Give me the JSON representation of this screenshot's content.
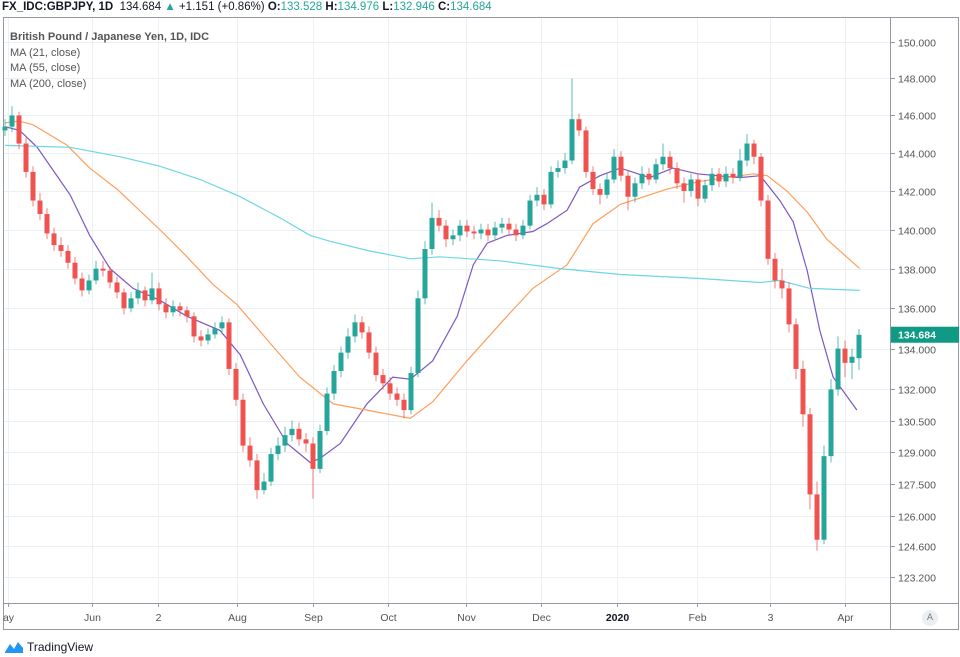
{
  "header": {
    "symbol": "FX_IDC:GBPJPY, 1D",
    "last": "134.684",
    "change": "+1.151 (+0.86%)",
    "o_label": "O:",
    "o": "133.528",
    "h_label": "H:",
    "h": "134.976",
    "l_label": "L:",
    "l": "132.946",
    "c_label": "C:",
    "c": "134.684",
    "direction_icon": "triangle-up"
  },
  "legend": {
    "title": "British Pound / Japanese Yen, 1D, IDC",
    "ma1": "MA (21, close)",
    "ma2": "MA (55, close)",
    "ma3": "MA (200, close)"
  },
  "footer": {
    "logo_text": "TradingView"
  },
  "auto_button": "A",
  "colors": {
    "up": "#26a69a",
    "down": "#ef5350",
    "ma21": "#7e57c2",
    "ma55": "#ff9f5a",
    "ma200": "#6dd6e2",
    "grid": "#eaf0f4",
    "price_label": "#0f9a85"
  },
  "chart_data": {
    "type": "candlestick",
    "symbol": "GBPJPY",
    "interval": "1D",
    "y_scale": "log",
    "ylim": [
      121.5,
      151.5
    ],
    "grid": true,
    "last_price_label": "134.684",
    "y_ticks": [
      "150.000",
      "148.000",
      "146.000",
      "144.000",
      "142.000",
      "140.000",
      "138.000",
      "136.000",
      "134.000",
      "132.000",
      "130.500",
      "129.000",
      "127.500",
      "126.000",
      "124.600",
      "123.200"
    ],
    "x_ticks": [
      {
        "label": "ay",
        "i": 0.4
      },
      {
        "label": "Jun",
        "i": 12.4
      },
      {
        "label": "2",
        "i": 21.9
      },
      {
        "label": "Aug",
        "i": 33.1
      },
      {
        "label": "Sep",
        "i": 44
      },
      {
        "label": "Oct",
        "i": 54.7
      },
      {
        "label": "Nov",
        "i": 65.9
      },
      {
        "label": "Dec",
        "i": 76.6
      },
      {
        "label": "2020",
        "i": 87.4,
        "bold": true
      },
      {
        "label": "Feb",
        "i": 98.9
      },
      {
        "label": "3",
        "i": 109.3
      },
      {
        "label": "Apr",
        "i": 120
      }
    ],
    "ohlc": [
      [
        145.2,
        145.8,
        144.9,
        145.4
      ],
      [
        145.4,
        146.5,
        145.1,
        146.0
      ],
      [
        146.0,
        146.2,
        144.2,
        144.5
      ],
      [
        144.5,
        144.8,
        142.7,
        143.0
      ],
      [
        143.0,
        143.3,
        141.2,
        141.5
      ],
      [
        141.5,
        141.9,
        140.5,
        140.8
      ],
      [
        140.8,
        141.1,
        139.5,
        139.8
      ],
      [
        139.8,
        140.1,
        138.9,
        139.2
      ],
      [
        139.2,
        139.6,
        138.6,
        138.9
      ],
      [
        138.9,
        139.2,
        138.0,
        138.3
      ],
      [
        138.3,
        138.6,
        137.2,
        137.5
      ],
      [
        137.5,
        137.8,
        136.6,
        136.9
      ],
      [
        136.9,
        137.7,
        136.7,
        137.4
      ],
      [
        137.4,
        138.4,
        137.2,
        138.0
      ],
      [
        138.0,
        138.4,
        137.6,
        137.9
      ],
      [
        137.9,
        138.1,
        137.0,
        137.3
      ],
      [
        137.3,
        137.6,
        136.5,
        136.8
      ],
      [
        136.8,
        137.0,
        135.7,
        136.0
      ],
      [
        136.0,
        136.8,
        135.8,
        136.5
      ],
      [
        136.5,
        137.3,
        136.2,
        136.9
      ],
      [
        136.9,
        137.1,
        136.1,
        136.4
      ],
      [
        136.4,
        137.8,
        136.2,
        137.0
      ],
      [
        137.0,
        137.3,
        135.9,
        136.2
      ],
      [
        136.2,
        136.5,
        135.5,
        135.8
      ],
      [
        135.8,
        136.4,
        135.6,
        136.1
      ],
      [
        136.1,
        136.3,
        135.6,
        135.9
      ],
      [
        135.9,
        136.1,
        135.3,
        135.6
      ],
      [
        135.6,
        135.8,
        134.3,
        134.6
      ],
      [
        134.6,
        134.9,
        134.1,
        134.4
      ],
      [
        134.4,
        135.0,
        134.2,
        134.7
      ],
      [
        134.7,
        135.3,
        134.5,
        135.0
      ],
      [
        135.0,
        135.6,
        134.7,
        135.3
      ],
      [
        135.3,
        135.5,
        132.7,
        133.0
      ],
      [
        133.0,
        133.3,
        131.2,
        131.5
      ],
      [
        131.5,
        131.8,
        129.0,
        129.3
      ],
      [
        129.3,
        129.7,
        128.3,
        128.6
      ],
      [
        128.6,
        128.9,
        126.8,
        127.2
      ],
      [
        127.2,
        128.0,
        127.0,
        127.6
      ],
      [
        127.6,
        129.2,
        127.4,
        128.9
      ],
      [
        128.9,
        129.7,
        128.6,
        129.3
      ],
      [
        129.3,
        130.2,
        129.0,
        129.8
      ],
      [
        129.8,
        130.5,
        129.5,
        130.1
      ],
      [
        130.1,
        130.4,
        129.3,
        129.6
      ],
      [
        129.6,
        129.9,
        129.0,
        129.4
      ],
      [
        129.4,
        129.7,
        126.8,
        128.2
      ],
      [
        128.2,
        130.3,
        128.0,
        130.0
      ],
      [
        130.0,
        132.1,
        129.8,
        131.8
      ],
      [
        131.8,
        133.2,
        131.5,
        132.9
      ],
      [
        132.9,
        134.1,
        132.6,
        133.8
      ],
      [
        133.8,
        135.0,
        133.5,
        134.6
      ],
      [
        134.6,
        135.7,
        134.3,
        135.3
      ],
      [
        135.3,
        135.6,
        134.5,
        134.8
      ],
      [
        134.8,
        135.1,
        133.5,
        133.8
      ],
      [
        133.8,
        134.1,
        132.4,
        132.7
      ],
      [
        132.7,
        133.0,
        132.0,
        132.3
      ],
      [
        132.3,
        132.6,
        131.5,
        131.8
      ],
      [
        131.8,
        132.1,
        131.2,
        131.5
      ],
      [
        131.5,
        131.8,
        130.6,
        131.0
      ],
      [
        131.0,
        133.1,
        130.8,
        132.8
      ],
      [
        132.8,
        136.9,
        132.6,
        136.5
      ],
      [
        136.5,
        139.4,
        136.2,
        139.0
      ],
      [
        139.0,
        141.4,
        138.7,
        140.6
      ],
      [
        140.6,
        141.0,
        139.9,
        140.2
      ],
      [
        140.2,
        140.5,
        139.1,
        139.5
      ],
      [
        139.5,
        140.0,
        139.2,
        139.7
      ],
      [
        139.7,
        140.5,
        139.4,
        140.2
      ],
      [
        140.2,
        140.5,
        139.6,
        139.9
      ],
      [
        139.9,
        140.2,
        139.5,
        139.8
      ],
      [
        139.8,
        140.3,
        139.5,
        140.0
      ],
      [
        140.0,
        140.3,
        139.4,
        139.7
      ],
      [
        139.7,
        140.4,
        139.5,
        140.1
      ],
      [
        140.1,
        140.6,
        139.8,
        140.3
      ],
      [
        140.3,
        140.6,
        139.7,
        140.0
      ],
      [
        140.0,
        140.3,
        139.4,
        139.7
      ],
      [
        139.7,
        140.5,
        139.5,
        140.2
      ],
      [
        140.2,
        141.8,
        140.0,
        141.5
      ],
      [
        141.5,
        142.2,
        141.2,
        141.8
      ],
      [
        141.8,
        142.1,
        141.0,
        141.3
      ],
      [
        141.3,
        143.3,
        141.1,
        143.0
      ],
      [
        143.0,
        143.6,
        142.7,
        143.2
      ],
      [
        143.2,
        144.0,
        142.9,
        143.6
      ],
      [
        143.6,
        148.0,
        143.4,
        145.8
      ],
      [
        145.8,
        146.1,
        144.9,
        145.2
      ],
      [
        145.2,
        145.4,
        142.7,
        143.0
      ],
      [
        143.0,
        143.3,
        141.8,
        142.1
      ],
      [
        142.1,
        142.4,
        141.3,
        141.8
      ],
      [
        141.8,
        142.9,
        141.6,
        142.6
      ],
      [
        142.6,
        144.2,
        142.4,
        143.8
      ],
      [
        143.8,
        144.1,
        142.5,
        142.8
      ],
      [
        142.8,
        143.1,
        141.0,
        141.7
      ],
      [
        141.7,
        142.7,
        141.4,
        142.4
      ],
      [
        142.4,
        143.3,
        142.1,
        142.9
      ],
      [
        142.9,
        143.2,
        142.3,
        142.6
      ],
      [
        142.6,
        143.7,
        142.4,
        143.4
      ],
      [
        143.4,
        144.5,
        143.1,
        143.8
      ],
      [
        143.8,
        144.1,
        142.9,
        143.2
      ],
      [
        143.2,
        143.5,
        142.1,
        142.4
      ],
      [
        142.4,
        142.7,
        141.4,
        142.0
      ],
      [
        142.0,
        142.9,
        141.7,
        142.6
      ],
      [
        142.6,
        142.9,
        141.2,
        141.6
      ],
      [
        141.6,
        142.6,
        141.4,
        142.3
      ],
      [
        142.3,
        143.2,
        142.0,
        142.9
      ],
      [
        142.9,
        143.2,
        142.2,
        142.5
      ],
      [
        142.5,
        143.3,
        142.2,
        142.9
      ],
      [
        142.9,
        143.2,
        142.4,
        142.7
      ],
      [
        142.7,
        144.2,
        142.5,
        143.6
      ],
      [
        143.6,
        145.0,
        143.3,
        144.5
      ],
      [
        144.5,
        144.7,
        143.4,
        143.8
      ],
      [
        143.8,
        144.0,
        141.2,
        141.5
      ],
      [
        141.5,
        141.8,
        138.2,
        138.5
      ],
      [
        138.5,
        138.8,
        137.0,
        137.4
      ],
      [
        137.4,
        138.0,
        136.5,
        137.0
      ],
      [
        137.0,
        137.3,
        134.8,
        135.2
      ],
      [
        135.2,
        135.5,
        132.5,
        133.0
      ],
      [
        133.0,
        133.4,
        130.2,
        130.8
      ],
      [
        130.8,
        131.1,
        126.3,
        127.0
      ],
      [
        127.0,
        127.6,
        124.4,
        124.9
      ],
      [
        124.9,
        129.3,
        124.7,
        128.8
      ],
      [
        128.8,
        132.5,
        128.5,
        132.0
      ],
      [
        132.0,
        134.6,
        131.7,
        134.0
      ],
      [
        134.0,
        134.4,
        132.6,
        133.3
      ],
      [
        133.3,
        134.0,
        132.5,
        133.6
      ],
      [
        133.528,
        134.976,
        132.946,
        134.684
      ]
    ],
    "series": [
      {
        "name": "MA (21, close)",
        "color": "#7e57c2",
        "points": [
          [
            0,
            145.4
          ],
          [
            2.1,
            145.2
          ],
          [
            4.6,
            144.3
          ],
          [
            9.3,
            141.8
          ],
          [
            12.1,
            139.7
          ],
          [
            15,
            138.0
          ],
          [
            18.3,
            137.0
          ],
          [
            22.1,
            136.4
          ],
          [
            26,
            135.6
          ],
          [
            30.7,
            134.9
          ],
          [
            33.6,
            133.7
          ],
          [
            36.9,
            131.3
          ],
          [
            40.3,
            129.4
          ],
          [
            43.6,
            128.5
          ],
          [
            45,
            128.7
          ],
          [
            47.9,
            129.4
          ],
          [
            51.7,
            131.3
          ],
          [
            55.4,
            132.6
          ],
          [
            57.9,
            132.5
          ],
          [
            61.1,
            133.4
          ],
          [
            64.6,
            135.6
          ],
          [
            66.9,
            138.2
          ],
          [
            68.9,
            139.3
          ],
          [
            71.7,
            139.7
          ],
          [
            75.4,
            139.9
          ],
          [
            77.4,
            140.3
          ],
          [
            80.3,
            141.0
          ],
          [
            82.1,
            142.2
          ],
          [
            85,
            142.8
          ],
          [
            87.9,
            143.2
          ],
          [
            92.1,
            142.7
          ],
          [
            95.4,
            143.2
          ],
          [
            98.9,
            142.9
          ],
          [
            101.7,
            142.8
          ],
          [
            105,
            142.7
          ],
          [
            107.9,
            142.8
          ],
          [
            110.7,
            141.5
          ],
          [
            112.6,
            140.4
          ],
          [
            114.6,
            137.9
          ],
          [
            116.4,
            134.9
          ],
          [
            118.3,
            132.6
          ],
          [
            121.7,
            131.0
          ]
        ]
      },
      {
        "name": "MA (55, close)",
        "color": "#ff9f5a",
        "points": [
          [
            0,
            145.6
          ],
          [
            2,
            145.7
          ],
          [
            4,
            145.5
          ],
          [
            8.9,
            144.4
          ],
          [
            12.1,
            143.2
          ],
          [
            16,
            142.1
          ],
          [
            22.1,
            140.0
          ],
          [
            26,
            138.6
          ],
          [
            29.7,
            137.2
          ],
          [
            33.1,
            136.2
          ],
          [
            38.3,
            134.1
          ],
          [
            42.1,
            132.6
          ],
          [
            46.9,
            131.3
          ],
          [
            51.7,
            131.0
          ],
          [
            57.9,
            130.6
          ],
          [
            61.1,
            131.4
          ],
          [
            66,
            133.4
          ],
          [
            71.7,
            135.6
          ],
          [
            75.4,
            137.0
          ],
          [
            80.3,
            138.2
          ],
          [
            84,
            140.3
          ],
          [
            87.9,
            141.3
          ],
          [
            94.6,
            142.1
          ],
          [
            99.3,
            142.5
          ],
          [
            106.9,
            142.9
          ],
          [
            108.9,
            142.8
          ],
          [
            111.7,
            142.0
          ],
          [
            114.6,
            140.9
          ],
          [
            117.4,
            139.5
          ],
          [
            122.1,
            138.0
          ]
        ]
      },
      {
        "name": "MA (200, close)",
        "color": "#6dd6e2",
        "points": [
          [
            0,
            144.4
          ],
          [
            9.3,
            144.3
          ],
          [
            16.4,
            143.8
          ],
          [
            22.1,
            143.3
          ],
          [
            27.9,
            142.6
          ],
          [
            33.6,
            141.7
          ],
          [
            39.3,
            140.6
          ],
          [
            43.6,
            139.7
          ],
          [
            46.4,
            139.4
          ],
          [
            52.1,
            138.9
          ],
          [
            57.9,
            138.5
          ],
          [
            62.1,
            138.6
          ],
          [
            70.7,
            138.4
          ],
          [
            79.3,
            138.0
          ],
          [
            87.9,
            137.7
          ],
          [
            99.3,
            137.5
          ],
          [
            107.9,
            137.3
          ],
          [
            110.7,
            137.4
          ],
          [
            115,
            137.0
          ],
          [
            122.1,
            136.9
          ]
        ]
      }
    ]
  }
}
